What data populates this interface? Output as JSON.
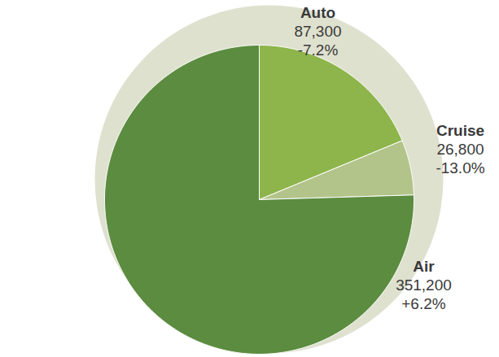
{
  "chart_data": {
    "type": "pie",
    "categories": [
      "Auto",
      "Cruise",
      "Air"
    ],
    "values": [
      87300,
      26800,
      351200
    ],
    "value_labels": [
      "87,300",
      "26,800",
      "351,200"
    ],
    "changes": [
      -7.2,
      -13.0,
      6.2
    ],
    "change_labels": [
      "-7.2%",
      "-13.0%",
      "+6.2%"
    ],
    "colors": [
      "#8db54b",
      "#b3c48a",
      "#5b8c3f"
    ],
    "data_labels": true
  }
}
